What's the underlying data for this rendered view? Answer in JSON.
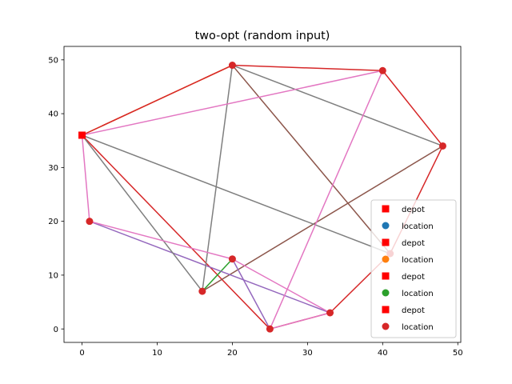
{
  "chart_data": {
    "type": "scatter",
    "title": "two-opt (random input)",
    "xlabel": "",
    "ylabel": "",
    "xlim": [
      -2.4,
      50.4
    ],
    "ylim": [
      -2.5,
      52.5
    ],
    "xticks": [
      0,
      10,
      20,
      30,
      40,
      50
    ],
    "yticks": [
      0,
      10,
      20,
      30,
      40,
      50
    ],
    "grid": false,
    "legend_position": "lower-right",
    "depot": {
      "x": 0,
      "y": 36
    },
    "locations": [
      {
        "x": 20,
        "y": 49
      },
      {
        "x": 40,
        "y": 48
      },
      {
        "x": 48,
        "y": 34
      },
      {
        "x": 1,
        "y": 20
      },
      {
        "x": 20,
        "y": 13
      },
      {
        "x": 16,
        "y": 7
      },
      {
        "x": 25,
        "y": 0
      },
      {
        "x": 33,
        "y": 3
      },
      {
        "x": 41,
        "y": 14
      }
    ],
    "routes": [
      {
        "color": "#ff7f0e",
        "points": [
          [
            0,
            36
          ],
          [
            20,
            49
          ]
        ]
      },
      {
        "color": "#d62728",
        "points": [
          [
            0,
            36
          ],
          [
            20,
            49
          ],
          [
            40,
            48
          ],
          [
            48,
            34
          ],
          [
            41,
            14
          ],
          [
            33,
            3
          ],
          [
            25,
            0
          ],
          [
            0,
            36
          ]
        ]
      },
      {
        "color": "#8c564b",
        "points": [
          [
            20,
            49
          ],
          [
            41,
            14
          ]
        ]
      },
      {
        "color": "#8c564b",
        "points": [
          [
            16,
            7
          ],
          [
            48,
            34
          ]
        ]
      },
      {
        "color": "#2ca02c",
        "points": [
          [
            16,
            7
          ],
          [
            20,
            13
          ]
        ]
      },
      {
        "color": "#9467bd",
        "points": [
          [
            1,
            20
          ],
          [
            33,
            3
          ]
        ]
      },
      {
        "color": "#9467bd",
        "points": [
          [
            20,
            13
          ],
          [
            25,
            0
          ]
        ]
      },
      {
        "color": "#7f7f7f",
        "points": [
          [
            0,
            36
          ],
          [
            16,
            7
          ],
          [
            20,
            49
          ],
          [
            48,
            34
          ]
        ]
      },
      {
        "color": "#7f7f7f",
        "points": [
          [
            0,
            36
          ],
          [
            41,
            14
          ]
        ]
      },
      {
        "color": "#e377c2",
        "points": [
          [
            0,
            36
          ],
          [
            40,
            48
          ],
          [
            25,
            0
          ],
          [
            33,
            3
          ],
          [
            20,
            13
          ],
          [
            1,
            20
          ],
          [
            0,
            36
          ]
        ]
      }
    ],
    "legend": [
      {
        "label": "depot",
        "marker": "square",
        "color": "#ff0000"
      },
      {
        "label": "location",
        "marker": "circle",
        "color": "#1f77b4"
      },
      {
        "label": "depot",
        "marker": "square",
        "color": "#ff0000"
      },
      {
        "label": "location",
        "marker": "circle",
        "color": "#ff7f0e"
      },
      {
        "label": "depot",
        "marker": "square",
        "color": "#ff0000"
      },
      {
        "label": "location",
        "marker": "circle",
        "color": "#2ca02c"
      },
      {
        "label": "depot",
        "marker": "square",
        "color": "#ff0000"
      },
      {
        "label": "location",
        "marker": "circle",
        "color": "#d62728"
      }
    ],
    "marker_colors": {
      "depot": "#ff0000",
      "location": "#d62728"
    }
  }
}
